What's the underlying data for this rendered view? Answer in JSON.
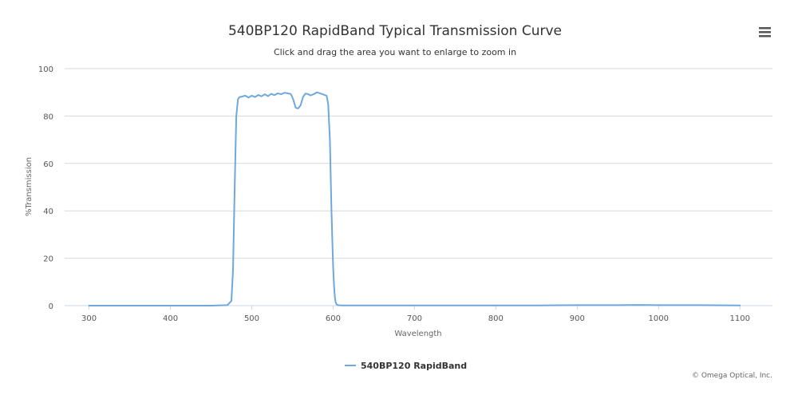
{
  "title": "540BP120 RapidBand Typical Transmission Curve",
  "subtitle": "Click and drag the area you want to enlarge to zoom in",
  "credits": "© Omega Optical, Inc.",
  "menu_icon": "hamburger-menu-icon",
  "colors": {
    "series": "#6fa8dc",
    "grid": "#d8d8d8",
    "axis": "#ccd6eb"
  },
  "chart_data": {
    "type": "line",
    "title": "540BP120 RapidBand Typical Transmission Curve",
    "subtitle": "Click and drag the area you want to enlarge to zoom in",
    "xlabel": "Wavelength",
    "ylabel": "%Transmission",
    "xlim": [
      270,
      1140
    ],
    "ylim": [
      0,
      100
    ],
    "xticks": [
      300,
      400,
      500,
      600,
      700,
      800,
      900,
      1000,
      1100
    ],
    "yticks": [
      0,
      20,
      40,
      60,
      80,
      100
    ],
    "grid": true,
    "legend": "bottom-center",
    "series": [
      {
        "name": "540BP120 RapidBand",
        "color": "#6fa8dc",
        "x": [
          300,
          350,
          400,
          450,
          470,
          475,
          477,
          479,
          481,
          483,
          485,
          488,
          492,
          496,
          500,
          504,
          508,
          512,
          516,
          520,
          524,
          528,
          532,
          536,
          540,
          544,
          548,
          551,
          554,
          557,
          560,
          563,
          566,
          569,
          572,
          576,
          580,
          584,
          588,
          592,
          594,
          596,
          597,
          598,
          599,
          600,
          601,
          602,
          603,
          604,
          606,
          610,
          650,
          700,
          750,
          800,
          850,
          900,
          950,
          975,
          1000,
          1050,
          1100
        ],
        "y": [
          0,
          0,
          0,
          0,
          0.2,
          2,
          15,
          50,
          80,
          87,
          88,
          88.2,
          88.6,
          87.8,
          88.6,
          88.0,
          88.9,
          88.3,
          89.2,
          88.4,
          89.4,
          88.8,
          89.6,
          89.2,
          89.8,
          89.6,
          89.3,
          87.0,
          83.5,
          83.2,
          84.5,
          88.0,
          89.5,
          89.3,
          88.7,
          89.2,
          90.0,
          89.6,
          89.1,
          88.6,
          85.0,
          70.0,
          55.0,
          40.0,
          28.0,
          17.0,
          9.0,
          4.0,
          1.5,
          0.6,
          0.2,
          0.1,
          0.1,
          0.1,
          0.1,
          0.1,
          0.1,
          0.2,
          0.2,
          0.3,
          0.2,
          0.2,
          0.1
        ]
      }
    ]
  }
}
